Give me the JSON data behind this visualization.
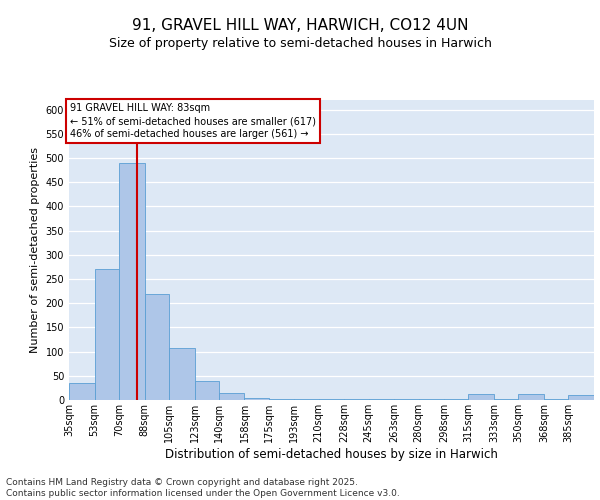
{
  "title1": "91, GRAVEL HILL WAY, HARWICH, CO12 4UN",
  "title2": "Size of property relative to semi-detached houses in Harwich",
  "xlabel": "Distribution of semi-detached houses by size in Harwich",
  "ylabel": "Number of semi-detached properties",
  "bins": [
    35,
    53,
    70,
    88,
    105,
    123,
    140,
    158,
    175,
    193,
    210,
    228,
    245,
    263,
    280,
    298,
    315,
    333,
    350,
    368,
    385,
    403
  ],
  "bin_labels": [
    "35sqm",
    "53sqm",
    "70sqm",
    "88sqm",
    "105sqm",
    "123sqm",
    "140sqm",
    "158sqm",
    "175sqm",
    "193sqm",
    "210sqm",
    "228sqm",
    "245sqm",
    "263sqm",
    "280sqm",
    "298sqm",
    "315sqm",
    "333sqm",
    "350sqm",
    "368sqm",
    "385sqm"
  ],
  "values": [
    35,
    270,
    490,
    220,
    108,
    40,
    15,
    5,
    3,
    3,
    2,
    2,
    2,
    2,
    2,
    2,
    13,
    2,
    13,
    2,
    10
  ],
  "bar_color": "#aec6e8",
  "bar_edge_color": "#5a9fd4",
  "subject_size": 83,
  "annotation_title": "91 GRAVEL HILL WAY: 83sqm",
  "annotation_line1": "← 51% of semi-detached houses are smaller (617)",
  "annotation_line2": "46% of semi-detached houses are larger (561) →",
  "annotation_color": "#cc0000",
  "vline_color": "#cc0000",
  "ylim": [
    0,
    620
  ],
  "yticks": [
    0,
    50,
    100,
    150,
    200,
    250,
    300,
    350,
    400,
    450,
    500,
    550,
    600
  ],
  "bg_color": "#dde8f5",
  "footer": "Contains HM Land Registry data © Crown copyright and database right 2025.\nContains public sector information licensed under the Open Government Licence v3.0.",
  "title1_fontsize": 11,
  "title2_fontsize": 9,
  "xlabel_fontsize": 8.5,
  "ylabel_fontsize": 8,
  "tick_fontsize": 7,
  "footer_fontsize": 6.5
}
